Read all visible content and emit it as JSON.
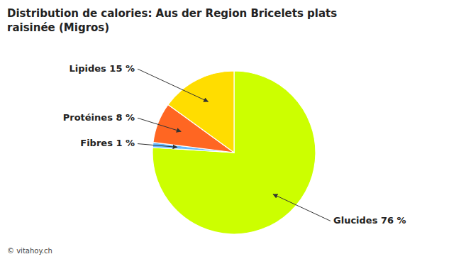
{
  "chart_data": {
    "type": "pie",
    "title": "Distribution de calories: Aus der Region Bricelets plats\nraisinée (Migros)",
    "categories": [
      "Glucides 76 %",
      "Fibres 1 %",
      "Protéines 8 %",
      "Lipides 15 %"
    ],
    "values": [
      76,
      1,
      8,
      15
    ],
    "colors": [
      "#ccff00",
      "#66bbff",
      "#ff6622",
      "#ffdd00"
    ],
    "annotations": [
      "© vitahoy.ch"
    ]
  }
}
